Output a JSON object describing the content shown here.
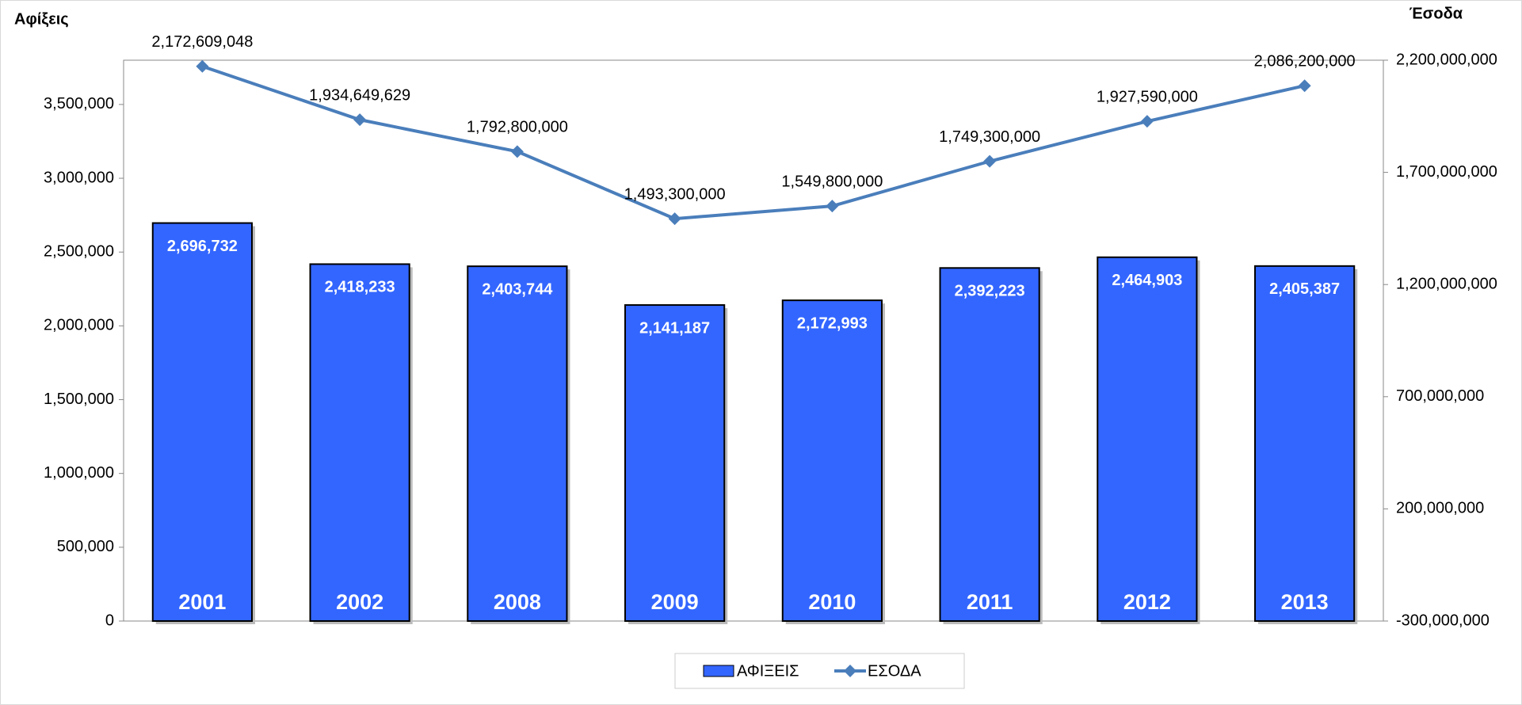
{
  "chart_data": {
    "type": "bar",
    "y_label": "Αφίξεις",
    "y2_label": "Έσοδα",
    "categories": [
      "2001",
      "2002",
      "2008",
      "2009",
      "2010",
      "2011",
      "2012",
      "2013"
    ],
    "series": [
      {
        "name": "ΑΦΙΞΕΙΣ",
        "type": "bar",
        "color": "#3366ff",
        "axis": "y",
        "values": [
          2696732,
          2418233,
          2403744,
          2141187,
          2172993,
          2392223,
          2464903,
          2405387
        ],
        "value_labels": [
          "2,696,732",
          "2,418,233",
          "2,403,744",
          "2,141,187",
          "2,172,993",
          "2,392,223",
          "2,464,903",
          "2,405,387"
        ]
      },
      {
        "name": "ΕΣΟΔΑ",
        "type": "line",
        "color": "#4a7ebb",
        "axis": "y2",
        "values": [
          2172609048,
          1934649629,
          1792800000,
          1493300000,
          1549800000,
          1749300000,
          1927590000,
          2086200000
        ],
        "value_labels": [
          "2,172,609,048",
          "1,934,649,629",
          "1,792,800,000",
          "1,493,300,000",
          "1,549,800,000",
          "1,749,300,000",
          "1,927,590,000",
          "2,086,200,000"
        ]
      }
    ],
    "ylim": [
      0,
      3800000
    ],
    "yticks": [
      0,
      {
        "value": 500000,
        "label": "500,000"
      },
      {
        "value": 1000000,
        "label": "1,000,000"
      },
      {
        "value": 1500000,
        "label": "1,500,000"
      },
      {
        "value": 2000000,
        "label": "2,000,000"
      },
      {
        "value": 2500000,
        "label": "2,500,000"
      },
      {
        "value": 3000000,
        "label": "3,000,000"
      },
      {
        "value": 3500000,
        "label": "3,500,000"
      }
    ],
    "y2lim": [
      -300000000,
      2200000000
    ],
    "y2ticks": [
      {
        "value": -300000000,
        "label": "-300,000,000"
      },
      {
        "value": 200000000,
        "label": "200,000,000"
      },
      {
        "value": 700000000,
        "label": "700,000,000"
      },
      {
        "value": 1200000000,
        "label": "1,200,000,000"
      },
      {
        "value": 1700000000,
        "label": "1,700,000,000"
      },
      {
        "value": 2200000000,
        "label": "2,200,000,000"
      }
    ],
    "legend": "bottom"
  }
}
